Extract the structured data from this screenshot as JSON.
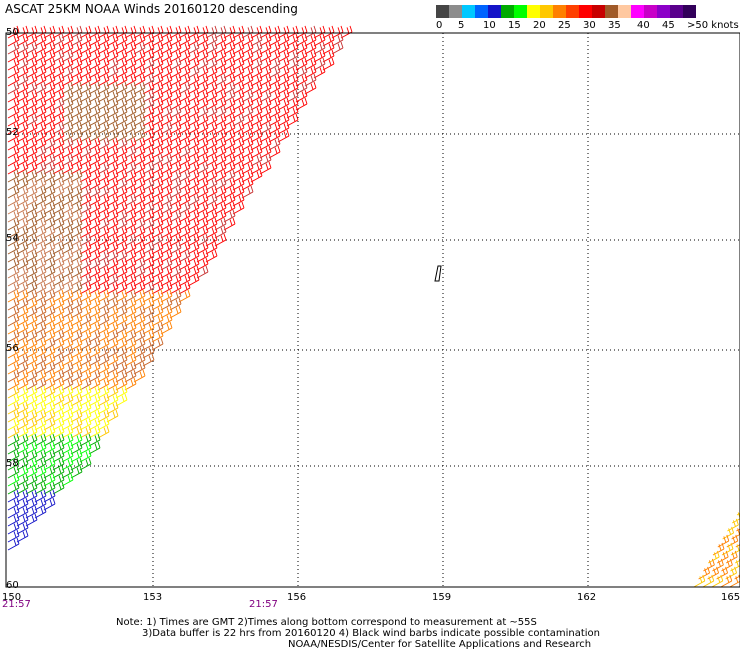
{
  "title": "ASCAT 25KM NOAA Winds 20160120 descending",
  "legend": {
    "colors": [
      "#454545",
      "#8c8c8c",
      "#00c8ff",
      "#0064ff",
      "#1414c8",
      "#00aa00",
      "#00ff00",
      "#ffff00",
      "#ffc800",
      "#ff8000",
      "#ff4000",
      "#ff0000",
      "#c80000",
      "#a05a28",
      "#ffc8a0",
      "#ff00ff",
      "#c800c8",
      "#8c00c8",
      "#5a008c",
      "#32005a"
    ],
    "labels": [
      "0",
      "5",
      "10",
      "15",
      "20",
      "25",
      "30",
      "35",
      "40",
      "45",
      ">50 knots"
    ]
  },
  "latitude_labels": [
    "50",
    "52",
    "54",
    "56",
    "58",
    "60"
  ],
  "longitude_labels": [
    "150",
    "153",
    "156",
    "159",
    "162",
    "165"
  ],
  "time_labels": [
    "21:57",
    "21:57"
  ],
  "notes": [
    "Note: 1) Times are GMT 2)Times along bottom correspond to measurement at ~55S",
    "3)Data buffer is 22 hrs from 20160120 4) Black wind barbs indicate possible contamination",
    "NOAA/NESDIS/Center for Satellite Applications and Research"
  ]
}
